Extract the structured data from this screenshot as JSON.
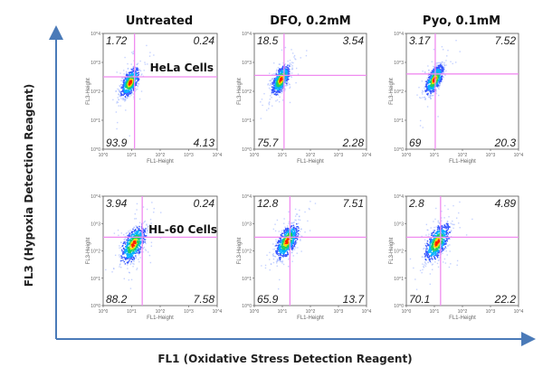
{
  "chart_data": {
    "type": "scatter",
    "xlabel": "FL1 (Oxidative Stress Detection Reagent)",
    "ylabel": "FL3 (Hypoxia Detection Reagent)",
    "column_titles": [
      "Untreated",
      "DFO, 0.2mM",
      "Pyo, 0.1mM"
    ],
    "row_labels": [
      "HeLa Cells",
      "HL-60 Cells"
    ],
    "panel_xlabel": "FL1-Height",
    "panel_ylabel": "FL3-Height",
    "x_scale": "log",
    "y_scale": "log",
    "xlim": [
      1,
      10000
    ],
    "ylim": [
      1,
      10000
    ],
    "tick_labels": [
      "10^0",
      "10^1",
      "10^2",
      "10^3",
      "10^4"
    ],
    "panels": [
      {
        "row": 0,
        "col": 0,
        "quadrants": {
          "ul": "1.72",
          "ur": "0.24",
          "ll": "93.9",
          "lr": "4.13"
        },
        "gate": {
          "x_log": 1.1,
          "y_log": 2.5
        },
        "population": {
          "x_log": 0.95,
          "y_log": 2.3,
          "spread": 0.22
        }
      },
      {
        "row": 0,
        "col": 1,
        "quadrants": {
          "ul": "18.5",
          "ur": "3.54",
          "ll": "75.7",
          "lr": "2.28"
        },
        "gate": {
          "x_log": 1.06,
          "y_log": 2.55
        },
        "population": {
          "x_log": 0.95,
          "y_log": 2.4,
          "spread": 0.22
        }
      },
      {
        "row": 0,
        "col": 2,
        "quadrants": {
          "ul": "3.17",
          "ur": "7.52",
          "ll": "69",
          "lr": "20.3"
        },
        "gate": {
          "x_log": 1.03,
          "y_log": 2.6
        },
        "population": {
          "x_log": 1.0,
          "y_log": 2.4,
          "spread": 0.22
        }
      },
      {
        "row": 1,
        "col": 0,
        "quadrants": {
          "ul": "3.94",
          "ur": "0.24",
          "ll": "88.2",
          "lr": "7.58"
        },
        "gate": {
          "x_log": 1.37,
          "y_log": 2.5
        },
        "population": {
          "x_log": 1.07,
          "y_log": 2.25,
          "spread": 0.3
        }
      },
      {
        "row": 1,
        "col": 1,
        "quadrants": {
          "ul": "12.8",
          "ur": "7.51",
          "ll": "65.9",
          "lr": "13.7"
        },
        "gate": {
          "x_log": 1.27,
          "y_log": 2.5
        },
        "population": {
          "x_log": 1.17,
          "y_log": 2.35,
          "spread": 0.28
        }
      },
      {
        "row": 1,
        "col": 2,
        "quadrants": {
          "ul": "2.8",
          "ur": "4.89",
          "ll": "70.1",
          "lr": "22.2"
        },
        "gate": {
          "x_log": 1.22,
          "y_log": 2.5
        },
        "population": {
          "x_log": 1.1,
          "y_log": 2.3,
          "spread": 0.3
        }
      }
    ]
  },
  "colors": {
    "gate": "#f08cf0",
    "axis_arrow": "#4a7ab8",
    "density": [
      "#9fb4ff",
      "#3355ff",
      "#00b0ff",
      "#20d060",
      "#f0e000",
      "#ff2000"
    ]
  }
}
